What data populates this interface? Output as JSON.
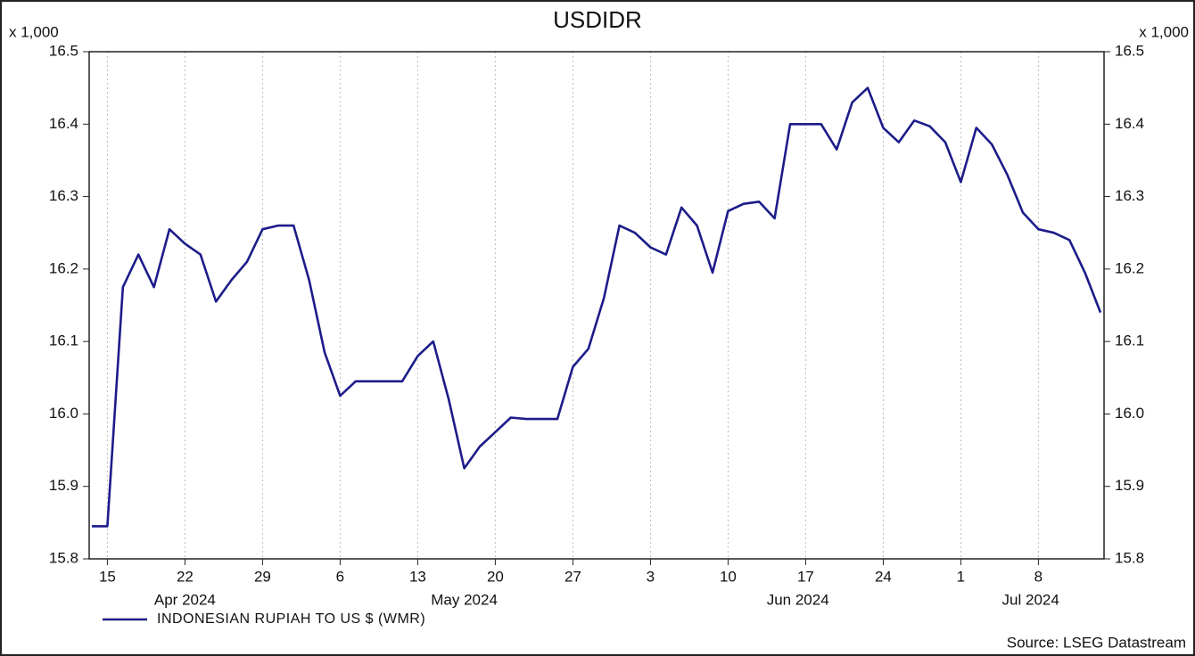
{
  "chart_data": {
    "type": "line",
    "title": "USDIDR",
    "y_unit_label": "x 1,000",
    "source": "Source: LSEG Datastream",
    "x": [
      "2024-04-12",
      "2024-04-15",
      "2024-04-16",
      "2024-04-17",
      "2024-04-18",
      "2024-04-19",
      "2024-04-22",
      "2024-04-23",
      "2024-04-24",
      "2024-04-25",
      "2024-04-26",
      "2024-04-29",
      "2024-04-30",
      "2024-05-01",
      "2024-05-02",
      "2024-05-03",
      "2024-05-06",
      "2024-05-07",
      "2024-05-08",
      "2024-05-09",
      "2024-05-10",
      "2024-05-13",
      "2024-05-14",
      "2024-05-15",
      "2024-05-16",
      "2024-05-17",
      "2024-05-20",
      "2024-05-21",
      "2024-05-22",
      "2024-05-23",
      "2024-05-24",
      "2024-05-27",
      "2024-05-28",
      "2024-05-29",
      "2024-05-30",
      "2024-05-31",
      "2024-06-03",
      "2024-06-04",
      "2024-06-05",
      "2024-06-06",
      "2024-06-07",
      "2024-06-10",
      "2024-06-11",
      "2024-06-12",
      "2024-06-13",
      "2024-06-14",
      "2024-06-17",
      "2024-06-18",
      "2024-06-19",
      "2024-06-20",
      "2024-06-21",
      "2024-06-24",
      "2024-06-25",
      "2024-06-26",
      "2024-06-27",
      "2024-06-28",
      "2024-07-01",
      "2024-07-02",
      "2024-07-03",
      "2024-07-04",
      "2024-07-05",
      "2024-07-08",
      "2024-07-09",
      "2024-07-10",
      "2024-07-11",
      "2024-07-12"
    ],
    "series": [
      {
        "name": "INDONESIAN RUPIAH TO US $ (WMR)",
        "color": "#1c1c8a",
        "values": [
          15.845,
          15.845,
          16.175,
          16.22,
          16.175,
          16.255,
          16.235,
          16.22,
          16.155,
          16.185,
          16.21,
          16.255,
          16.26,
          16.26,
          16.185,
          16.085,
          16.025,
          16.045,
          16.045,
          16.045,
          16.045,
          16.08,
          16.1,
          16.02,
          15.925,
          15.955,
          15.975,
          15.995,
          15.993,
          15.993,
          15.993,
          16.065,
          16.09,
          16.16,
          16.26,
          16.25,
          16.23,
          16.22,
          16.285,
          16.26,
          16.195,
          16.28,
          16.29,
          16.293,
          16.27,
          16.4,
          16.4,
          16.4,
          16.365,
          16.43,
          16.45,
          16.395,
          16.375,
          16.405,
          16.397,
          16.375,
          16.32,
          16.395,
          16.372,
          16.33,
          16.278,
          16.255,
          16.25,
          16.24,
          16.195,
          16.14
        ]
      }
    ],
    "xlim": [
      "2024-04-12",
      "2024-07-12"
    ],
    "xticks": [
      {
        "value": "2024-04-15",
        "label": "15"
      },
      {
        "value": "2024-04-22",
        "label": "22"
      },
      {
        "value": "2024-04-29",
        "label": "29"
      },
      {
        "value": "2024-05-06",
        "label": "6"
      },
      {
        "value": "2024-05-13",
        "label": "13"
      },
      {
        "value": "2024-05-20",
        "label": "20"
      },
      {
        "value": "2024-05-27",
        "label": "27"
      },
      {
        "value": "2024-06-03",
        "label": "3"
      },
      {
        "value": "2024-06-10",
        "label": "10"
      },
      {
        "value": "2024-06-17",
        "label": "17"
      },
      {
        "value": "2024-06-24",
        "label": "24"
      },
      {
        "value": "2024-07-01",
        "label": "1"
      },
      {
        "value": "2024-07-08",
        "label": "8"
      }
    ],
    "month_labels": [
      "Apr 2024",
      "May 2024",
      "Jun 2024",
      "Jul 2024"
    ],
    "ylim": [
      15.8,
      16.5
    ],
    "yticks": [
      15.8,
      15.9,
      {
        "value": 16,
        "label": "16.0"
      },
      16.1,
      16.2,
      16.3,
      16.4,
      16.5
    ],
    "grid": "x",
    "legend": "bottom-left"
  }
}
